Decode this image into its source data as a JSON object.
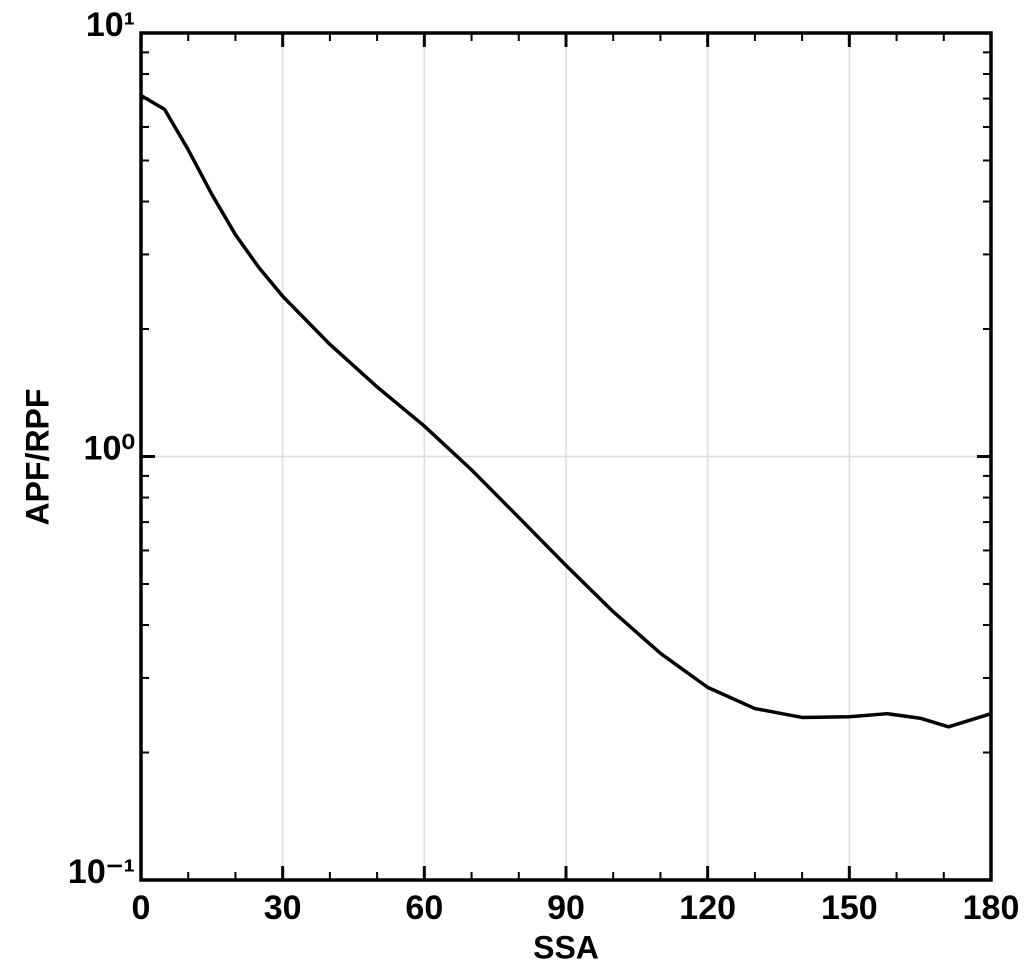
{
  "chart_data": {
    "type": "line",
    "x_label": "SSA",
    "y_label": "APF/RPF",
    "xlim": [
      0,
      180
    ],
    "xticks": [
      0,
      30,
      60,
      90,
      120,
      150,
      180
    ],
    "xminorticks": [
      10,
      20,
      40,
      50,
      70,
      80,
      100,
      110,
      130,
      140,
      160,
      170
    ],
    "ylim": [
      0.1,
      10
    ],
    "log_y": true,
    "yticks": [
      {
        "value": 0.1,
        "label": "10⁻¹"
      },
      {
        "value": 1,
        "label": "10⁰"
      },
      {
        "value": 10,
        "label": "10¹"
      }
    ],
    "yminorticks": [
      0.2,
      0.3,
      0.4,
      0.5,
      0.6,
      0.7,
      0.8,
      0.9,
      2,
      3,
      4,
      5,
      6,
      7,
      8,
      9
    ],
    "grid": true,
    "series": [
      {
        "color": "#000000",
        "x": [
          0,
          5,
          10,
          15,
          20,
          25,
          30,
          40,
          50,
          60,
          70,
          80,
          90,
          100,
          110,
          120,
          130,
          140,
          150,
          158,
          165,
          171,
          180
        ],
        "values": [
          7.12,
          6.6,
          5.3,
          4.16,
          3.34,
          2.79,
          2.39,
          1.84,
          1.46,
          1.18,
          0.93,
          0.718,
          0.553,
          0.43,
          0.343,
          0.285,
          0.254,
          0.242,
          0.243,
          0.247,
          0.241,
          0.23,
          0.247
        ]
      }
    ]
  }
}
